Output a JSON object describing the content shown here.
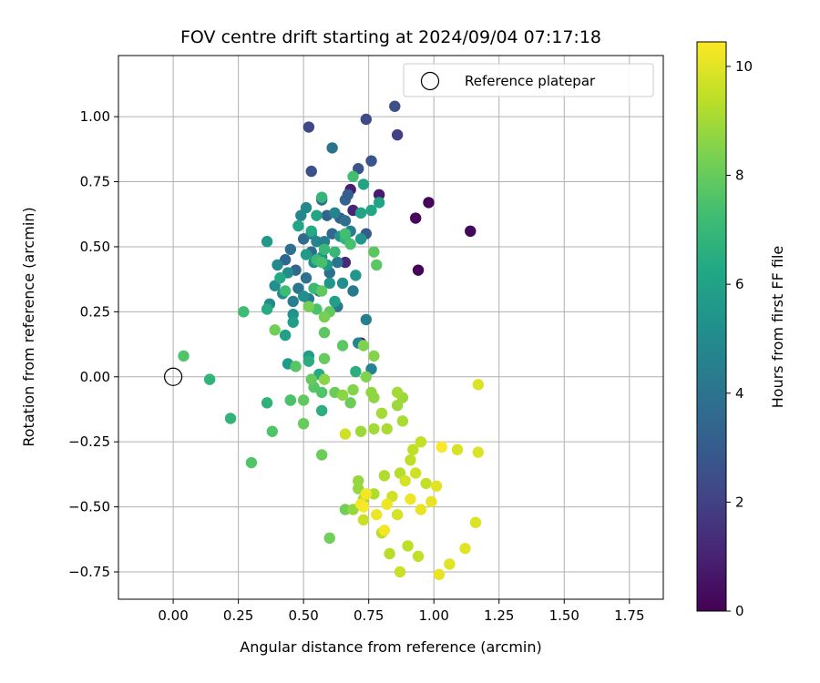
{
  "chart_data": {
    "type": "scatter",
    "title": "FOV centre drift starting at 2024/09/04 07:17:18",
    "xlabel": "Angular distance from reference (arcmin)",
    "ylabel": "Rotation from reference (arcmin)",
    "xlim": [
      -0.21,
      1.88
    ],
    "ylim": [
      -0.855,
      1.235
    ],
    "xticks": [
      0.0,
      0.25,
      0.5,
      0.75,
      1.0,
      1.25,
      1.5,
      1.75
    ],
    "yticks": [
      -0.75,
      -0.5,
      -0.25,
      0.0,
      0.25,
      0.5,
      0.75,
      1.0
    ],
    "xtick_labels": [
      "0.00",
      "0.25",
      "0.50",
      "0.75",
      "1.00",
      "1.25",
      "1.50",
      "1.75"
    ],
    "ytick_labels": [
      "−0.75",
      "−0.50",
      "−0.25",
      "0.00",
      "0.25",
      "0.50",
      "0.75",
      "1.00"
    ],
    "grid": true,
    "legend": {
      "position": "top-right",
      "entries": [
        "Reference platepar"
      ]
    },
    "reference_point": {
      "x": 0.0,
      "y": 0.0
    },
    "colorbar": {
      "label": "Hours from first FF file",
      "range": [
        0,
        10.45
      ],
      "ticks": [
        0,
        2,
        4,
        6,
        8,
        10
      ],
      "tick_labels": [
        "0",
        "2",
        "4",
        "6",
        "8",
        "10"
      ],
      "colormap": "viridis"
    },
    "series": [
      {
        "points": [
          {
            "x": 0.98,
            "y": 0.67,
            "c": 0.1
          },
          {
            "x": 0.93,
            "y": 0.61,
            "c": 0.2
          },
          {
            "x": 0.94,
            "y": 0.41,
            "c": 0.1
          },
          {
            "x": 1.14,
            "y": 0.56,
            "c": 0.2
          },
          {
            "x": 0.72,
            "y": 0.13,
            "c": 0.3
          },
          {
            "x": 0.79,
            "y": 0.7,
            "c": 0.8
          },
          {
            "x": 0.68,
            "y": 0.72,
            "c": 0.9
          },
          {
            "x": 0.66,
            "y": 0.44,
            "c": 1.2
          },
          {
            "x": 0.69,
            "y": 0.64,
            "c": 1.1
          },
          {
            "x": 0.85,
            "y": 1.04,
            "c": 2.5
          },
          {
            "x": 0.74,
            "y": 0.99,
            "c": 2.4
          },
          {
            "x": 0.52,
            "y": 0.96,
            "c": 2.3
          },
          {
            "x": 0.86,
            "y": 0.93,
            "c": 2.0
          },
          {
            "x": 0.53,
            "y": 0.79,
            "c": 2.6
          },
          {
            "x": 0.76,
            "y": 0.83,
            "c": 2.8
          },
          {
            "x": 0.71,
            "y": 0.8,
            "c": 2.7
          },
          {
            "x": 0.74,
            "y": 0.55,
            "c": 3.0
          },
          {
            "x": 0.66,
            "y": 0.68,
            "c": 3.4
          },
          {
            "x": 0.59,
            "y": 0.62,
            "c": 3.3
          },
          {
            "x": 0.61,
            "y": 0.55,
            "c": 3.5
          },
          {
            "x": 0.64,
            "y": 0.61,
            "c": 3.2
          },
          {
            "x": 0.57,
            "y": 0.68,
            "c": 3.6
          },
          {
            "x": 0.67,
            "y": 0.7,
            "c": 3.1
          },
          {
            "x": 0.5,
            "y": 0.53,
            "c": 3.6
          },
          {
            "x": 0.53,
            "y": 0.48,
            "c": 3.7
          },
          {
            "x": 0.45,
            "y": 0.49,
            "c": 3.8
          },
          {
            "x": 0.47,
            "y": 0.41,
            "c": 3.5
          },
          {
            "x": 0.43,
            "y": 0.45,
            "c": 3.4
          },
          {
            "x": 0.61,
            "y": 0.88,
            "c": 4.0
          },
          {
            "x": 0.66,
            "y": 0.6,
            "c": 3.9
          },
          {
            "x": 0.63,
            "y": 0.44,
            "c": 4.1
          },
          {
            "x": 0.6,
            "y": 0.4,
            "c": 3.8
          },
          {
            "x": 0.69,
            "y": 0.33,
            "c": 4.2
          },
          {
            "x": 0.63,
            "y": 0.27,
            "c": 4.2
          },
          {
            "x": 0.56,
            "y": 0.33,
            "c": 4.0
          },
          {
            "x": 0.51,
            "y": 0.38,
            "c": 3.9
          },
          {
            "x": 0.52,
            "y": 0.3,
            "c": 4.3
          },
          {
            "x": 0.48,
            "y": 0.34,
            "c": 4.1
          },
          {
            "x": 0.46,
            "y": 0.29,
            "c": 4.4
          },
          {
            "x": 0.53,
            "y": 0.55,
            "c": 4.3
          },
          {
            "x": 0.74,
            "y": 0.22,
            "c": 4.5
          },
          {
            "x": 0.76,
            "y": 0.03,
            "c": 4.6
          },
          {
            "x": 0.71,
            "y": 0.13,
            "c": 4.7
          },
          {
            "x": 0.55,
            "y": 0.52,
            "c": 4.8
          },
          {
            "x": 0.49,
            "y": 0.62,
            "c": 4.8
          },
          {
            "x": 0.51,
            "y": 0.65,
            "c": 4.9
          },
          {
            "x": 0.58,
            "y": 0.52,
            "c": 4.5
          },
          {
            "x": 0.62,
            "y": 0.63,
            "c": 4.6
          },
          {
            "x": 0.68,
            "y": 0.56,
            "c": 4.4
          },
          {
            "x": 0.4,
            "y": 0.43,
            "c": 4.9
          },
          {
            "x": 0.42,
            "y": 0.32,
            "c": 5.0
          },
          {
            "x": 0.44,
            "y": 0.4,
            "c": 5.1
          },
          {
            "x": 0.39,
            "y": 0.35,
            "c": 5.2
          },
          {
            "x": 0.37,
            "y": 0.28,
            "c": 5.0
          },
          {
            "x": 0.46,
            "y": 0.24,
            "c": 5.3
          },
          {
            "x": 0.5,
            "y": 0.31,
            "c": 5.2
          },
          {
            "x": 0.54,
            "y": 0.44,
            "c": 5.1
          },
          {
            "x": 0.57,
            "y": 0.46,
            "c": 5.3
          },
          {
            "x": 0.6,
            "y": 0.36,
            "c": 5.4
          },
          {
            "x": 0.65,
            "y": 0.36,
            "c": 5.2
          },
          {
            "x": 0.7,
            "y": 0.39,
            "c": 5.5
          },
          {
            "x": 0.72,
            "y": 0.53,
            "c": 5.5
          },
          {
            "x": 0.64,
            "y": 0.54,
            "c": 5.4
          },
          {
            "x": 0.59,
            "y": 0.43,
            "c": 5.6
          },
          {
            "x": 0.36,
            "y": 0.52,
            "c": 5.6
          },
          {
            "x": 0.51,
            "y": 0.47,
            "c": 5.7
          },
          {
            "x": 0.46,
            "y": 0.21,
            "c": 5.8
          },
          {
            "x": 0.43,
            "y": 0.16,
            "c": 5.9
          },
          {
            "x": 0.52,
            "y": 0.08,
            "c": 5.8
          },
          {
            "x": 0.44,
            "y": 0.05,
            "c": 5.7
          },
          {
            "x": 0.62,
            "y": 0.29,
            "c": 5.9
          },
          {
            "x": 0.72,
            "y": 0.63,
            "c": 6.0
          },
          {
            "x": 0.73,
            "y": 0.74,
            "c": 6.1
          },
          {
            "x": 0.76,
            "y": 0.64,
            "c": 6.2
          },
          {
            "x": 0.79,
            "y": 0.67,
            "c": 6.0
          },
          {
            "x": 0.55,
            "y": 0.62,
            "c": 6.1
          },
          {
            "x": 0.53,
            "y": 0.56,
            "c": 6.3
          },
          {
            "x": 0.48,
            "y": 0.58,
            "c": 6.2
          },
          {
            "x": 0.41,
            "y": 0.38,
            "c": 6.3
          },
          {
            "x": 0.36,
            "y": 0.26,
            "c": 6.4
          },
          {
            "x": 0.52,
            "y": 0.06,
            "c": 6.5
          },
          {
            "x": 0.56,
            "y": 0.01,
            "c": 6.4
          },
          {
            "x": 0.7,
            "y": 0.02,
            "c": 6.6
          },
          {
            "x": 0.57,
            "y": -0.13,
            "c": 6.6
          },
          {
            "x": 0.45,
            "y": -0.09,
            "c": 6.7
          },
          {
            "x": 0.36,
            "y": -0.1,
            "c": 6.7
          },
          {
            "x": 0.22,
            "y": -0.16,
            "c": 6.8
          },
          {
            "x": 0.14,
            "y": -0.01,
            "c": 6.8
          },
          {
            "x": 0.57,
            "y": 0.69,
            "c": 6.9
          },
          {
            "x": 0.66,
            "y": 0.53,
            "c": 6.9
          },
          {
            "x": 0.62,
            "y": 0.48,
            "c": 7.0
          },
          {
            "x": 0.58,
            "y": 0.49,
            "c": 7.0
          },
          {
            "x": 0.54,
            "y": 0.34,
            "c": 7.1
          },
          {
            "x": 0.55,
            "y": 0.45,
            "c": 7.1
          },
          {
            "x": 0.43,
            "y": 0.33,
            "c": 7.2
          },
          {
            "x": 0.27,
            "y": 0.25,
            "c": 7.2
          },
          {
            "x": 0.69,
            "y": 0.77,
            "c": 7.3
          },
          {
            "x": 0.66,
            "y": 0.55,
            "c": 7.3
          },
          {
            "x": 0.68,
            "y": 0.51,
            "c": 7.4
          },
          {
            "x": 0.57,
            "y": 0.44,
            "c": 7.4
          },
          {
            "x": 0.55,
            "y": 0.26,
            "c": 7.5
          },
          {
            "x": 0.45,
            "y": -0.09,
            "c": 7.5
          },
          {
            "x": 0.3,
            "y": -0.33,
            "c": 7.6
          },
          {
            "x": 0.38,
            "y": -0.21,
            "c": 7.6
          },
          {
            "x": 0.57,
            "y": -0.06,
            "c": 7.6
          },
          {
            "x": 0.54,
            "y": -0.04,
            "c": 7.7
          },
          {
            "x": 0.47,
            "y": 0.04,
            "c": 7.7
          },
          {
            "x": 0.04,
            "y": 0.08,
            "c": 7.6
          },
          {
            "x": 0.77,
            "y": 0.48,
            "c": 7.8
          },
          {
            "x": 0.78,
            "y": 0.43,
            "c": 7.8
          },
          {
            "x": 0.57,
            "y": 0.33,
            "c": 7.9
          },
          {
            "x": 0.6,
            "y": 0.25,
            "c": 7.9
          },
          {
            "x": 0.58,
            "y": 0.17,
            "c": 7.8
          },
          {
            "x": 0.65,
            "y": 0.12,
            "c": 7.8
          },
          {
            "x": 0.5,
            "y": -0.09,
            "c": 7.9
          },
          {
            "x": 0.5,
            "y": -0.18,
            "c": 8.0
          },
          {
            "x": 0.53,
            "y": -0.01,
            "c": 8.0
          },
          {
            "x": 0.58,
            "y": 0.07,
            "c": 8.0
          },
          {
            "x": 0.62,
            "y": -0.06,
            "c": 8.1
          },
          {
            "x": 0.68,
            "y": -0.1,
            "c": 8.1
          },
          {
            "x": 0.57,
            "y": -0.3,
            "c": 8.1
          },
          {
            "x": 0.66,
            "y": -0.51,
            "c": 8.2
          },
          {
            "x": 0.6,
            "y": -0.62,
            "c": 8.2
          },
          {
            "x": 0.58,
            "y": 0.23,
            "c": 8.3
          },
          {
            "x": 0.52,
            "y": 0.27,
            "c": 8.3
          },
          {
            "x": 0.39,
            "y": 0.18,
            "c": 8.2
          },
          {
            "x": 0.73,
            "y": 0.12,
            "c": 8.4
          },
          {
            "x": 0.77,
            "y": 0.08,
            "c": 8.5
          },
          {
            "x": 0.74,
            "y": 0.0,
            "c": 8.4
          },
          {
            "x": 0.58,
            "y": -0.01,
            "c": 8.6
          },
          {
            "x": 0.65,
            "y": -0.07,
            "c": 8.6
          },
          {
            "x": 0.69,
            "y": -0.05,
            "c": 8.5
          },
          {
            "x": 0.76,
            "y": -0.06,
            "c": 8.7
          },
          {
            "x": 0.77,
            "y": -0.08,
            "c": 8.7
          },
          {
            "x": 0.71,
            "y": -0.4,
            "c": 8.8
          },
          {
            "x": 0.71,
            "y": -0.43,
            "c": 8.8
          },
          {
            "x": 0.69,
            "y": -0.51,
            "c": 8.8
          },
          {
            "x": 0.86,
            "y": -0.11,
            "c": 8.9
          },
          {
            "x": 0.88,
            "y": -0.08,
            "c": 8.9
          },
          {
            "x": 0.72,
            "y": -0.21,
            "c": 8.9
          },
          {
            "x": 0.77,
            "y": -0.2,
            "c": 9.0
          },
          {
            "x": 0.8,
            "y": -0.14,
            "c": 9.0
          },
          {
            "x": 0.82,
            "y": -0.2,
            "c": 9.1
          },
          {
            "x": 0.88,
            "y": -0.17,
            "c": 9.1
          },
          {
            "x": 0.86,
            "y": -0.06,
            "c": 9.0
          },
          {
            "x": 0.73,
            "y": -0.47,
            "c": 9.2
          },
          {
            "x": 0.77,
            "y": -0.45,
            "c": 9.2
          },
          {
            "x": 0.81,
            "y": -0.38,
            "c": 9.2
          },
          {
            "x": 0.87,
            "y": -0.37,
            "c": 9.3
          },
          {
            "x": 0.8,
            "y": -0.6,
            "c": 9.3
          },
          {
            "x": 0.83,
            "y": -0.68,
            "c": 9.3
          },
          {
            "x": 0.9,
            "y": -0.65,
            "c": 9.4
          },
          {
            "x": 0.91,
            "y": -0.32,
            "c": 9.4
          },
          {
            "x": 0.92,
            "y": -0.28,
            "c": 9.4
          },
          {
            "x": 0.95,
            "y": -0.25,
            "c": 9.5
          },
          {
            "x": 0.97,
            "y": -0.41,
            "c": 9.5
          },
          {
            "x": 0.94,
            "y": -0.69,
            "c": 9.5
          },
          {
            "x": 0.87,
            "y": -0.75,
            "c": 9.6
          },
          {
            "x": 0.73,
            "y": -0.55,
            "c": 9.6
          },
          {
            "x": 0.66,
            "y": -0.22,
            "c": 9.7
          },
          {
            "x": 0.93,
            "y": -0.37,
            "c": 9.7
          },
          {
            "x": 0.84,
            "y": -0.46,
            "c": 9.7
          },
          {
            "x": 0.86,
            "y": -0.53,
            "c": 9.8
          },
          {
            "x": 0.89,
            "y": -0.4,
            "c": 9.8
          },
          {
            "x": 1.09,
            "y": -0.28,
            "c": 9.8
          },
          {
            "x": 1.17,
            "y": -0.03,
            "c": 9.9
          },
          {
            "x": 1.17,
            "y": -0.29,
            "c": 9.9
          },
          {
            "x": 1.16,
            "y": -0.56,
            "c": 9.9
          },
          {
            "x": 1.12,
            "y": -0.66,
            "c": 10.0
          },
          {
            "x": 1.06,
            "y": -0.72,
            "c": 10.0
          },
          {
            "x": 1.02,
            "y": -0.76,
            "c": 10.1
          },
          {
            "x": 1.01,
            "y": -0.42,
            "c": 10.0
          },
          {
            "x": 0.99,
            "y": -0.48,
            "c": 10.1
          },
          {
            "x": 0.95,
            "y": -0.51,
            "c": 10.1
          },
          {
            "x": 0.91,
            "y": -0.47,
            "c": 10.2
          },
          {
            "x": 0.82,
            "y": -0.49,
            "c": 10.2
          },
          {
            "x": 0.78,
            "y": -0.53,
            "c": 10.2
          },
          {
            "x": 0.72,
            "y": -0.49,
            "c": 10.3
          },
          {
            "x": 0.74,
            "y": -0.45,
            "c": 10.3
          },
          {
            "x": 1.03,
            "y": -0.27,
            "c": 10.4
          },
          {
            "x": 0.73,
            "y": -0.5,
            "c": 10.4
          },
          {
            "x": 0.81,
            "y": -0.59,
            "c": 10.3
          }
        ]
      }
    ]
  }
}
